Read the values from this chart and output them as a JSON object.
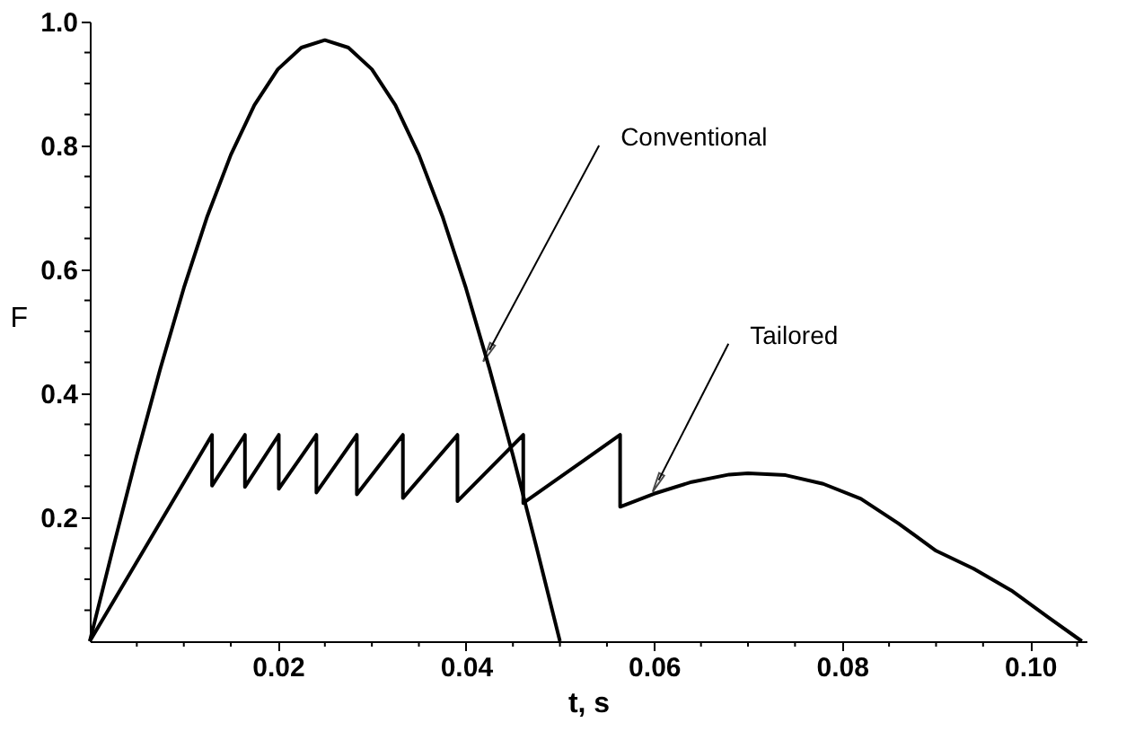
{
  "chart_data": {
    "type": "line",
    "xlabel": "t, s",
    "ylabel": "F",
    "xlim": [
      0,
      0.106
    ],
    "ylim": [
      0,
      1.0
    ],
    "xticks": [
      {
        "value": 0.005,
        "label": null
      },
      {
        "value": 0.01,
        "label": null
      },
      {
        "value": 0.015,
        "label": null
      },
      0.02,
      {
        "value": 0.025,
        "label": null
      },
      {
        "value": 0.03,
        "label": null
      },
      {
        "value": 0.035,
        "label": null
      },
      0.04,
      {
        "value": 0.045,
        "label": null
      },
      {
        "value": 0.05,
        "label": null
      },
      {
        "value": 0.055,
        "label": null
      },
      0.06,
      {
        "value": 0.065,
        "label": null
      },
      {
        "value": 0.07,
        "label": null
      },
      {
        "value": 0.075,
        "label": null
      },
      0.08,
      {
        "value": 0.085,
        "label": null
      },
      {
        "value": 0.09,
        "label": null
      },
      {
        "value": 0.095,
        "label": null
      },
      {
        "value": 0.1,
        "label": "0.10"
      },
      {
        "value": 0.105,
        "label": null
      }
    ],
    "yticks": [
      {
        "value": 0.05,
        "label": null
      },
      {
        "value": 0.1,
        "label": null
      },
      {
        "value": 0.15,
        "label": null
      },
      0.2,
      {
        "value": 0.25,
        "label": null
      },
      {
        "value": 0.3,
        "label": null
      },
      {
        "value": 0.35,
        "label": null
      },
      0.4,
      {
        "value": 0.45,
        "label": null
      },
      {
        "value": 0.5,
        "label": null
      },
      {
        "value": 0.55,
        "label": null
      },
      0.6,
      {
        "value": 0.65,
        "label": null
      },
      {
        "value": 0.7,
        "label": null
      },
      {
        "value": 0.75,
        "label": null
      },
      0.8,
      {
        "value": 0.85,
        "label": null
      },
      {
        "value": 0.9,
        "label": null
      },
      {
        "value": 0.95,
        "label": null
      },
      {
        "value": 1.0,
        "label": "1.0"
      }
    ],
    "grid": false,
    "marker": "none",
    "line_style": "solid",
    "series": [
      {
        "color": "#000000",
        "x": [
          0,
          0.0025,
          0.005,
          0.0075,
          0.01,
          0.0125,
          0.015,
          0.0175,
          0.02,
          0.0225,
          0.025,
          0.0275,
          0.03,
          0.0325,
          0.035,
          0.0375,
          0.04,
          0.0425,
          0.045,
          0.0475,
          0.05
        ],
        "values": [
          0,
          0.152,
          0.3,
          0.44,
          0.57,
          0.686,
          0.785,
          0.865,
          0.923,
          0.958,
          0.97,
          0.958,
          0.923,
          0.865,
          0.785,
          0.686,
          0.57,
          0.44,
          0.3,
          0.152,
          0
        ]
      },
      {
        "color": "#000000",
        "x": [
          0,
          0.013,
          0.013,
          0.0165,
          0.0165,
          0.0201,
          0.0201,
          0.0241,
          0.0241,
          0.0284,
          0.0284,
          0.0333,
          0.0333,
          0.0391,
          0.0391,
          0.0461,
          0.0461,
          0.0564,
          0.0564,
          0.06,
          0.064,
          0.068,
          0.07,
          0.074,
          0.078,
          0.082,
          0.086,
          0.09,
          0.094,
          0.098,
          0.102,
          0.1055
        ],
        "values": [
          0,
          0.333,
          0.251,
          0.333,
          0.249,
          0.333,
          0.246,
          0.333,
          0.24,
          0.333,
          0.237,
          0.333,
          0.231,
          0.333,
          0.226,
          0.333,
          0.223,
          0.333,
          0.217,
          0.238,
          0.257,
          0.269,
          0.271,
          0.268,
          0.254,
          0.23,
          0.19,
          0.146,
          0.117,
          0.082,
          0.038,
          0
        ]
      }
    ],
    "annotations": [
      {
        "text": "Conventional",
        "x": 0.0425,
        "y": 0.47
      },
      {
        "text": "Tailored",
        "x": 0.0605,
        "y": 0.26
      }
    ]
  }
}
